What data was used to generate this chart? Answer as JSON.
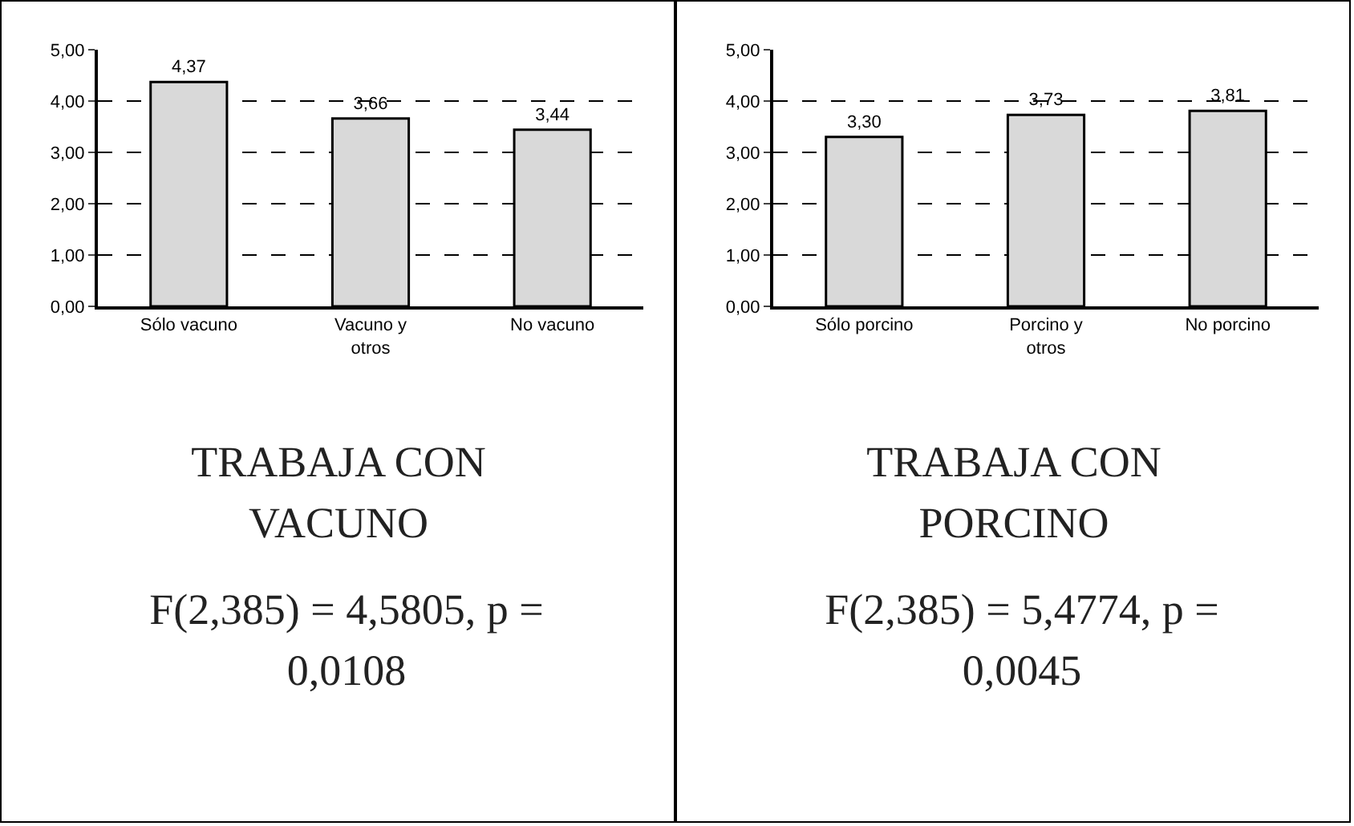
{
  "chart_data": [
    {
      "type": "bar",
      "title": "TRABAJA CON VACUNO",
      "annotations": [
        "F(2,385) = 4,5805, p = 0,0108"
      ],
      "categories": [
        "Sólo vacuno",
        "Vacuno y otros",
        "No vacuno"
      ],
      "values": [
        4.37,
        3.66,
        3.44
      ],
      "value_labels": [
        "4,37",
        "3,66",
        "3,44"
      ],
      "color": "#d9d9d9",
      "ylim": [
        0,
        5
      ],
      "yticks": [
        {
          "value": 0,
          "label": "0,00"
        },
        {
          "value": 1,
          "label": "1,00"
        },
        {
          "value": 2,
          "label": "2,00"
        },
        {
          "value": 3,
          "label": "3,00"
        },
        {
          "value": 4,
          "label": "4,00"
        },
        {
          "value": 5,
          "label": "5,00"
        }
      ],
      "grid": "y"
    },
    {
      "type": "bar",
      "title": "TRABAJA CON PORCINO",
      "annotations": [
        "F(2,385) = 5,4774, p = 0,0045"
      ],
      "categories": [
        "Sólo porcino",
        "Porcino y otros",
        "No porcino"
      ],
      "values": [
        3.3,
        3.73,
        3.81
      ],
      "value_labels": [
        "3,30",
        "3,73",
        "3,81"
      ],
      "color": "#d9d9d9",
      "ylim": [
        0,
        5
      ],
      "yticks": [
        {
          "value": 0,
          "label": "0,00"
        },
        {
          "value": 1,
          "label": "1,00"
        },
        {
          "value": 2,
          "label": "2,00"
        },
        {
          "value": 3,
          "label": "3,00"
        },
        {
          "value": 4,
          "label": "4,00"
        },
        {
          "value": 5,
          "label": "5,00"
        }
      ],
      "grid": "y"
    }
  ]
}
